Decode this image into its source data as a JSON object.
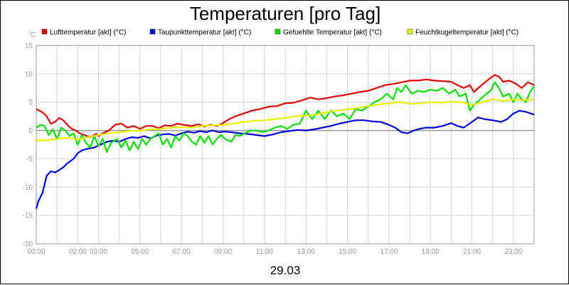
{
  "chart_data": {
    "type": "line",
    "title": "Temperaturen [pro Tag]",
    "ylabel": "°C",
    "xlabel": "29.03",
    "ylim": [
      -20,
      15
    ],
    "yticks": [
      15,
      10,
      5,
      0,
      -5,
      -10,
      -15,
      -20
    ],
    "xlim": [
      0,
      24
    ],
    "xticks": [
      {
        "hour": 0,
        "label": "00:00"
      },
      {
        "hour": 2,
        "label": "02:00"
      },
      {
        "hour": 3,
        "label": "03:00"
      },
      {
        "hour": 5,
        "label": "05:00"
      },
      {
        "hour": 7,
        "label": "07:00"
      },
      {
        "hour": 9,
        "label": "09:00"
      },
      {
        "hour": 11,
        "label": "11:00"
      },
      {
        "hour": 13,
        "label": "13:00"
      },
      {
        "hour": 15,
        "label": "15:00"
      },
      {
        "hour": 17,
        "label": "17:00"
      },
      {
        "hour": 19,
        "label": "19:00"
      },
      {
        "hour": 21,
        "label": "21:00"
      },
      {
        "hour": 23,
        "label": "23:00"
      }
    ],
    "grid": true,
    "legend_position": "top",
    "series": [
      {
        "name": "Lufttemperatur [akt] (°C)",
        "color": "#dd0000",
        "points": [
          [
            0,
            3.8
          ],
          [
            0.3,
            3.2
          ],
          [
            0.5,
            2.5
          ],
          [
            0.7,
            1.2
          ],
          [
            0.9,
            1.5
          ],
          [
            1.1,
            2.2
          ],
          [
            1.3,
            1.8
          ],
          [
            1.5,
            1.0
          ],
          [
            1.7,
            0.3
          ],
          [
            1.9,
            0.0
          ],
          [
            2.1,
            -0.5
          ],
          [
            2.3,
            -0.8
          ],
          [
            2.6,
            -1.2
          ],
          [
            2.9,
            -0.6
          ],
          [
            3.0,
            -1.0
          ],
          [
            3.2,
            -0.5
          ],
          [
            3.5,
            0.0
          ],
          [
            3.8,
            1.0
          ],
          [
            4.1,
            1.2
          ],
          [
            4.4,
            0.5
          ],
          [
            4.7,
            0.8
          ],
          [
            5.0,
            0.3
          ],
          [
            5.3,
            0.8
          ],
          [
            5.6,
            0.8
          ],
          [
            5.9,
            0.4
          ],
          [
            6.2,
            0.9
          ],
          [
            6.5,
            0.8
          ],
          [
            6.8,
            1.2
          ],
          [
            7.1,
            1.0
          ],
          [
            7.5,
            0.8
          ],
          [
            7.8,
            1.1
          ],
          [
            8.1,
            0.7
          ],
          [
            8.4,
            1.0
          ],
          [
            8.7,
            0.8
          ],
          [
            9.0,
            1.3
          ],
          [
            9.3,
            2.0
          ],
          [
            9.6,
            2.5
          ],
          [
            10.0,
            3.0
          ],
          [
            10.4,
            3.5
          ],
          [
            10.8,
            3.8
          ],
          [
            11.2,
            4.2
          ],
          [
            11.6,
            4.3
          ],
          [
            12.0,
            4.8
          ],
          [
            12.4,
            4.9
          ],
          [
            12.8,
            5.3
          ],
          [
            13.2,
            5.8
          ],
          [
            13.6,
            5.5
          ],
          [
            14.0,
            5.7
          ],
          [
            14.4,
            6.0
          ],
          [
            14.8,
            6.2
          ],
          [
            15.2,
            6.5
          ],
          [
            15.6,
            6.8
          ],
          [
            16.0,
            7.0
          ],
          [
            16.4,
            7.5
          ],
          [
            16.8,
            8.0
          ],
          [
            17.2,
            8.2
          ],
          [
            17.6,
            8.5
          ],
          [
            18.0,
            8.8
          ],
          [
            18.4,
            8.8
          ],
          [
            18.8,
            9.0
          ],
          [
            19.2,
            8.8
          ],
          [
            19.6,
            8.7
          ],
          [
            20.0,
            8.6
          ],
          [
            20.3,
            8.0
          ],
          [
            20.6,
            7.5
          ],
          [
            20.9,
            8.0
          ],
          [
            21.1,
            6.8
          ],
          [
            21.4,
            7.8
          ],
          [
            21.8,
            9.0
          ],
          [
            22.1,
            9.8
          ],
          [
            22.3,
            9.5
          ],
          [
            22.5,
            8.6
          ],
          [
            22.8,
            8.8
          ],
          [
            23.1,
            8.3
          ],
          [
            23.4,
            7.5
          ],
          [
            23.7,
            8.5
          ],
          [
            24.0,
            8.0
          ]
        ]
      },
      {
        "name": "Taupunkttemperatur [akt] (°C)",
        "color": "#0000dd",
        "points": [
          [
            0,
            -13.8
          ],
          [
            0.1,
            -12.5
          ],
          [
            0.3,
            -11.0
          ],
          [
            0.5,
            -8.0
          ],
          [
            0.7,
            -7.2
          ],
          [
            0.9,
            -7.4
          ],
          [
            1.1,
            -7.0
          ],
          [
            1.3,
            -6.5
          ],
          [
            1.5,
            -5.8
          ],
          [
            1.8,
            -5.0
          ],
          [
            2.0,
            -4.0
          ],
          [
            2.2,
            -3.5
          ],
          [
            2.5,
            -3.2
          ],
          [
            2.8,
            -3.0
          ],
          [
            3.1,
            -2.5
          ],
          [
            3.4,
            -2.0
          ],
          [
            3.7,
            -1.8
          ],
          [
            4.0,
            -2.0
          ],
          [
            4.3,
            -1.5
          ],
          [
            4.6,
            -1.2
          ],
          [
            4.9,
            -1.3
          ],
          [
            5.2,
            -1.0
          ],
          [
            5.5,
            -1.4
          ],
          [
            5.8,
            -0.9
          ],
          [
            6.1,
            -0.7
          ],
          [
            6.4,
            -0.6
          ],
          [
            6.7,
            -0.9
          ],
          [
            7.0,
            -0.5
          ],
          [
            7.3,
            -0.2
          ],
          [
            7.6,
            -0.4
          ],
          [
            7.9,
            -0.1
          ],
          [
            8.2,
            -0.3
          ],
          [
            8.5,
            0.0
          ],
          [
            8.8,
            -0.3
          ],
          [
            9.1,
            -0.2
          ],
          [
            9.4,
            -0.3
          ],
          [
            9.8,
            -0.5
          ],
          [
            10.2,
            -0.6
          ],
          [
            10.6,
            -0.8
          ],
          [
            11.0,
            -1.0
          ],
          [
            11.4,
            -0.7
          ],
          [
            11.8,
            -0.3
          ],
          [
            12.2,
            -0.1
          ],
          [
            12.6,
            0.1
          ],
          [
            13.0,
            0.0
          ],
          [
            13.4,
            0.2
          ],
          [
            13.8,
            0.5
          ],
          [
            14.2,
            0.8
          ],
          [
            14.6,
            1.2
          ],
          [
            15.0,
            1.5
          ],
          [
            15.4,
            1.8
          ],
          [
            15.8,
            1.8
          ],
          [
            16.2,
            1.6
          ],
          [
            16.6,
            1.5
          ],
          [
            17.0,
            1.0
          ],
          [
            17.3,
            0.5
          ],
          [
            17.6,
            -0.3
          ],
          [
            17.9,
            -0.5
          ],
          [
            18.2,
            0.0
          ],
          [
            18.5,
            0.3
          ],
          [
            18.8,
            0.5
          ],
          [
            19.2,
            0.5
          ],
          [
            19.6,
            0.8
          ],
          [
            20.0,
            1.3
          ],
          [
            20.3,
            0.8
          ],
          [
            20.6,
            0.5
          ],
          [
            21.0,
            1.5
          ],
          [
            21.3,
            2.3
          ],
          [
            21.6,
            2.0
          ],
          [
            22.0,
            1.8
          ],
          [
            22.4,
            1.5
          ],
          [
            22.7,
            2.0
          ],
          [
            23.0,
            3.0
          ],
          [
            23.3,
            3.5
          ],
          [
            23.6,
            3.3
          ],
          [
            24.0,
            2.8
          ]
        ]
      },
      {
        "name": "Gefuehlte Temperatur [akt] (°C)",
        "color": "#00dd00",
        "points": [
          [
            0,
            0.5
          ],
          [
            0.2,
            1.0
          ],
          [
            0.4,
            0.8
          ],
          [
            0.6,
            -0.8
          ],
          [
            0.8,
            0.2
          ],
          [
            1.0,
            -1.5
          ],
          [
            1.2,
            0.5
          ],
          [
            1.4,
            0.0
          ],
          [
            1.6,
            -1.0
          ],
          [
            1.8,
            -0.5
          ],
          [
            2.0,
            -2.5
          ],
          [
            2.2,
            -0.8
          ],
          [
            2.4,
            -2.2
          ],
          [
            2.6,
            -3.0
          ],
          [
            2.8,
            -1.0
          ],
          [
            3.0,
            -2.8
          ],
          [
            3.2,
            -1.5
          ],
          [
            3.4,
            -3.8
          ],
          [
            3.6,
            -2.2
          ],
          [
            3.9,
            -1.5
          ],
          [
            4.1,
            -3.0
          ],
          [
            4.3,
            -1.8
          ],
          [
            4.5,
            -3.5
          ],
          [
            4.7,
            -2.0
          ],
          [
            4.9,
            -3.3
          ],
          [
            5.1,
            -1.5
          ],
          [
            5.3,
            -2.5
          ],
          [
            5.5,
            -1.5
          ],
          [
            5.7,
            -1.0
          ],
          [
            5.9,
            -0.5
          ],
          [
            6.1,
            -2.5
          ],
          [
            6.3,
            -1.5
          ],
          [
            6.5,
            -3.0
          ],
          [
            6.7,
            -1.0
          ],
          [
            6.9,
            -1.8
          ],
          [
            7.1,
            -0.5
          ],
          [
            7.3,
            -1.0
          ],
          [
            7.5,
            -2.0
          ],
          [
            7.7,
            -2.5
          ],
          [
            7.9,
            -1.0
          ],
          [
            8.1,
            -2.2
          ],
          [
            8.3,
            -1.0
          ],
          [
            8.5,
            -2.5
          ],
          [
            8.7,
            -1.5
          ],
          [
            8.9,
            -0.8
          ],
          [
            9.1,
            -1.5
          ],
          [
            9.4,
            -2.0
          ],
          [
            9.6,
            -0.8
          ],
          [
            9.8,
            -1.0
          ],
          [
            10.0,
            -0.6
          ],
          [
            10.3,
            0.0
          ],
          [
            10.6,
            0.0
          ],
          [
            10.9,
            -0.3
          ],
          [
            11.2,
            0.0
          ],
          [
            11.5,
            0.5
          ],
          [
            11.8,
            0.8
          ],
          [
            12.1,
            0.3
          ],
          [
            12.4,
            1.0
          ],
          [
            12.7,
            1.2
          ],
          [
            13.0,
            3.5
          ],
          [
            13.3,
            2.0
          ],
          [
            13.6,
            3.5
          ],
          [
            13.9,
            2.0
          ],
          [
            14.2,
            3.5
          ],
          [
            14.5,
            2.5
          ],
          [
            14.8,
            3.0
          ],
          [
            15.1,
            2.0
          ],
          [
            15.4,
            3.8
          ],
          [
            15.7,
            3.5
          ],
          [
            16.0,
            4.2
          ],
          [
            16.3,
            5.0
          ],
          [
            16.6,
            5.5
          ],
          [
            16.9,
            6.5
          ],
          [
            17.2,
            5.5
          ],
          [
            17.4,
            7.5
          ],
          [
            17.6,
            6.8
          ],
          [
            17.8,
            8.0
          ],
          [
            18.1,
            6.5
          ],
          [
            18.4,
            7.0
          ],
          [
            18.7,
            6.8
          ],
          [
            19.0,
            7.2
          ],
          [
            19.3,
            7.0
          ],
          [
            19.6,
            7.5
          ],
          [
            19.9,
            6.5
          ],
          [
            20.2,
            7.2
          ],
          [
            20.4,
            6.0
          ],
          [
            20.7,
            6.5
          ],
          [
            20.9,
            3.5
          ],
          [
            21.1,
            4.5
          ],
          [
            21.4,
            5.5
          ],
          [
            21.7,
            6.5
          ],
          [
            21.9,
            7.0
          ],
          [
            22.1,
            8.5
          ],
          [
            22.3,
            7.5
          ],
          [
            22.5,
            6.0
          ],
          [
            22.8,
            6.5
          ],
          [
            23.0,
            5.0
          ],
          [
            23.2,
            6.5
          ],
          [
            23.4,
            5.5
          ],
          [
            23.6,
            5.0
          ],
          [
            23.8,
            6.8
          ],
          [
            24.0,
            7.8
          ]
        ]
      },
      {
        "name": "Feuchtkugeltemperatur [akt] (°C)",
        "color": "#eeee00",
        "points": [
          [
            0,
            -1.8
          ],
          [
            0.5,
            -1.7
          ],
          [
            1.0,
            -1.5
          ],
          [
            1.5,
            -1.3
          ],
          [
            2.0,
            -1.6
          ],
          [
            2.5,
            -1.2
          ],
          [
            3.0,
            -0.8
          ],
          [
            3.5,
            -0.5
          ],
          [
            4.0,
            -0.3
          ],
          [
            4.5,
            -0.1
          ],
          [
            5.0,
            0.0
          ],
          [
            5.5,
            0.2
          ],
          [
            6.0,
            0.3
          ],
          [
            6.5,
            0.5
          ],
          [
            7.0,
            0.6
          ],
          [
            7.5,
            0.5
          ],
          [
            8.0,
            0.8
          ],
          [
            8.5,
            0.9
          ],
          [
            9.0,
            1.0
          ],
          [
            9.5,
            1.2
          ],
          [
            10.0,
            1.5
          ],
          [
            10.5,
            1.7
          ],
          [
            11.0,
            1.8
          ],
          [
            11.5,
            2.0
          ],
          [
            12.0,
            2.2
          ],
          [
            12.5,
            2.5
          ],
          [
            13.0,
            2.6
          ],
          [
            13.5,
            2.8
          ],
          [
            14.0,
            3.2
          ],
          [
            14.5,
            3.5
          ],
          [
            15.0,
            3.7
          ],
          [
            15.5,
            4.0
          ],
          [
            16.0,
            4.3
          ],
          [
            16.5,
            4.6
          ],
          [
            17.0,
            4.8
          ],
          [
            17.5,
            5.0
          ],
          [
            18.0,
            4.7
          ],
          [
            18.5,
            4.8
          ],
          [
            19.0,
            5.0
          ],
          [
            19.5,
            4.9
          ],
          [
            20.0,
            5.1
          ],
          [
            20.5,
            5.0
          ],
          [
            21.0,
            4.5
          ],
          [
            21.5,
            5.0
          ],
          [
            22.0,
            5.5
          ],
          [
            22.5,
            5.2
          ],
          [
            23.0,
            5.5
          ],
          [
            23.5,
            5.3
          ],
          [
            24.0,
            5.5
          ]
        ]
      }
    ]
  }
}
